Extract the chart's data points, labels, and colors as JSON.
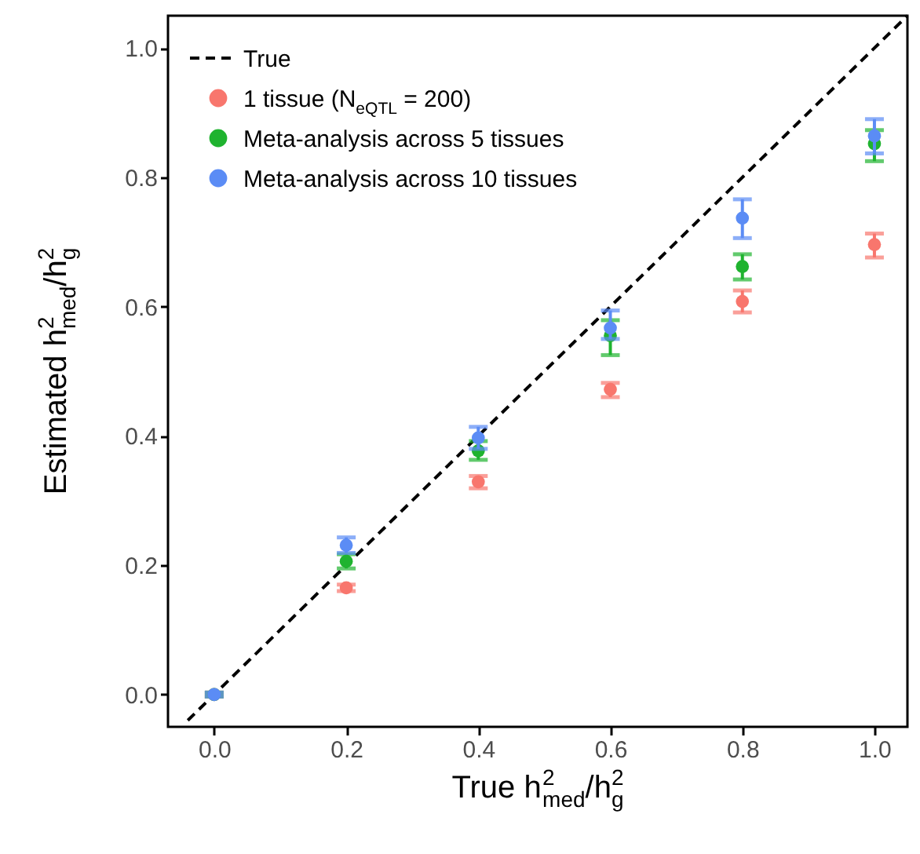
{
  "chart_data": {
    "type": "scatter",
    "xlabel": "True h$^{2}$$_{med}$/h$^{2}$$_{g}$",
    "ylabel": "Estimated h$^{2}$$_{med}$/h$^{2}$$_{g}$",
    "x": [
      0,
      0.2,
      0.4,
      0.6,
      0.8,
      1.0
    ],
    "xlim": [
      -0.07,
      1.05
    ],
    "ylim": [
      -0.05,
      1.05
    ],
    "xticks": [
      {
        "value": 0,
        "label": "0.0"
      },
      0.2,
      0.4,
      0.6,
      0.8,
      {
        "value": 1,
        "label": "1.0"
      }
    ],
    "yticks": [
      {
        "value": 0,
        "label": "0.0"
      },
      0.2,
      0.4,
      0.6,
      0.8,
      {
        "value": 1,
        "label": "1.0"
      }
    ],
    "grid": false,
    "legend": "top left",
    "marker": "circle",
    "series": [
      {
        "name": "True",
        "type": "line",
        "line_style": "dashed",
        "marker": "none",
        "color": "#000000",
        "x": [
          -0.04,
          1.05
        ],
        "values": [
          -0.04,
          1.05
        ]
      },
      {
        "name": "1 tissue (N$_{eQTL}$ = 200)",
        "color": "#f8766d",
        "values": [
          0,
          0.165,
          0.329,
          0.472,
          0.608,
          0.696
        ],
        "errors": [
          [
            -0.003,
            0.003
          ],
          [
            0.16,
            0.17
          ],
          [
            0.319,
            0.338
          ],
          [
            0.46,
            0.482
          ],
          [
            0.591,
            0.625
          ],
          [
            0.676,
            0.713
          ]
        ]
      },
      {
        "name": "Meta-analysis across 5 tissues",
        "color": "#1fb32f",
        "values": [
          0,
          0.206,
          0.377,
          0.555,
          0.662,
          0.852
        ],
        "errors": [
          [
            -0.003,
            0.003
          ],
          [
            0.195,
            0.217
          ],
          [
            0.363,
            0.392
          ],
          [
            0.525,
            0.579
          ],
          [
            0.642,
            0.681
          ],
          [
            0.825,
            0.873
          ]
        ]
      },
      {
        "name": "Meta-analysis across 10 tissues",
        "color": "#5b8cf5",
        "values": [
          0,
          0.231,
          0.397,
          0.567,
          0.737,
          0.864
        ],
        "errors": [
          [
            -0.003,
            0.003
          ],
          [
            0.219,
            0.243
          ],
          [
            0.38,
            0.414
          ],
          [
            0.55,
            0.594
          ],
          [
            0.706,
            0.766
          ],
          [
            0.837,
            0.89
          ]
        ]
      }
    ]
  }
}
